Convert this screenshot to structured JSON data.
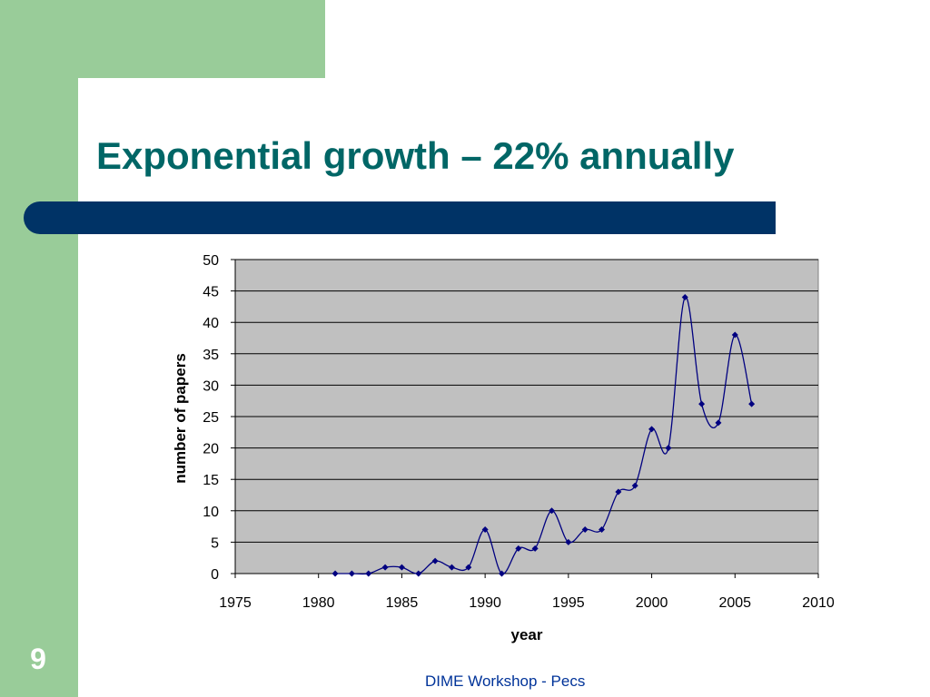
{
  "slide": {
    "title": "Exponential growth – 22% annually",
    "number": "9",
    "footer": "DIME Workshop - Pecs"
  },
  "colors": {
    "green_band": "#99cc99",
    "title_text": "#006666",
    "title_bar": "#003366",
    "plot_background": "#c0c0c0",
    "series_line": "#000080",
    "footer_text": "#003399"
  },
  "chart_data": {
    "type": "line",
    "title": "",
    "xlabel": "year",
    "ylabel": "number of papers",
    "xlim": [
      1975,
      2010
    ],
    "ylim": [
      0,
      50
    ],
    "x_ticks": [
      1975,
      1980,
      1985,
      1990,
      1995,
      2000,
      2005,
      2010
    ],
    "y_ticks": [
      0,
      5,
      10,
      15,
      20,
      25,
      30,
      35,
      40,
      45,
      50
    ],
    "grid": "horizontal",
    "legend": "none",
    "smoothed": true,
    "marker": "diamond",
    "series": [
      {
        "x": [
          1981,
          1982,
          1983,
          1984,
          1985,
          1986,
          1987,
          1988,
          1989,
          1990,
          1991,
          1992,
          1993,
          1994,
          1995,
          1996,
          1997,
          1998,
          1999,
          2000,
          2001,
          2002,
          2003,
          2004,
          2005,
          2006
        ],
        "values": [
          0,
          0,
          0,
          1,
          1,
          0,
          2,
          1,
          1,
          7,
          0,
          4,
          4,
          10,
          5,
          7,
          7,
          13,
          14,
          23,
          20,
          44,
          27,
          24,
          38,
          27
        ]
      }
    ]
  }
}
